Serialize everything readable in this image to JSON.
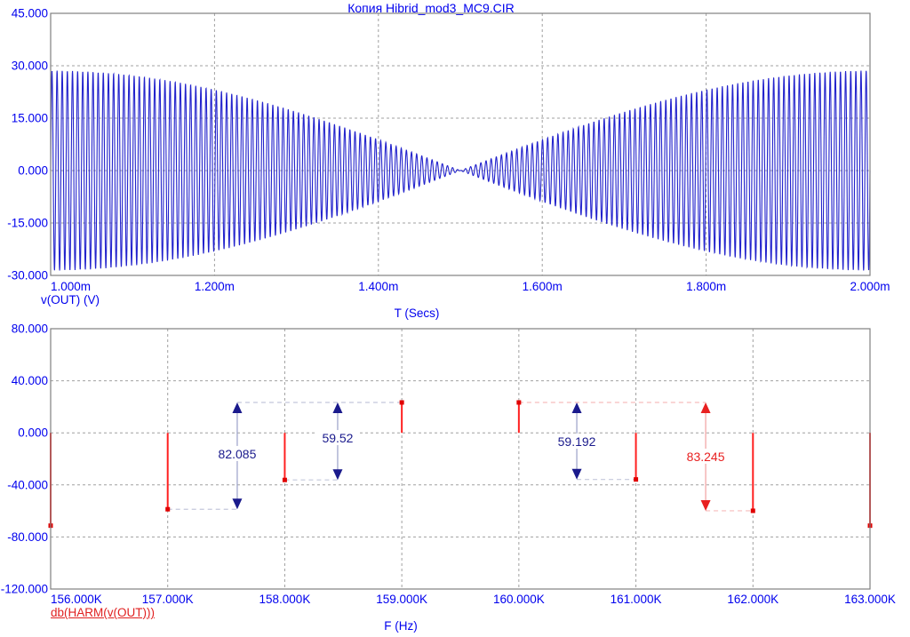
{
  "window": {
    "title": "Копия Hibrid_mod3_MC9.CIR"
  },
  "colors": {
    "label_blue": "#0000ee",
    "waveform_blue": "#2222cc",
    "stem_red": "#ff2020",
    "marker_red": "#e00000",
    "measure_navy": "#1a1a8c",
    "measure_red": "#e82020",
    "grid_gray": "#a0a0a0",
    "frame_gray": "#808080"
  },
  "chart_data": [
    {
      "type": "line",
      "name": "transient-analysis",
      "title": "Копия Hibrid_mod3_MC9.CIR",
      "trace_label": "v(OUT) (V)",
      "xlabel": "T (Secs)",
      "x_ticks": [
        "1.000m",
        "1.200m",
        "1.400m",
        "1.600m",
        "1.800m",
        "2.000m"
      ],
      "x_range_s": [
        0.001,
        0.002
      ],
      "y_ticks": [
        "45.000",
        "30.000",
        "15.000",
        "0.000",
        "-15.000",
        "-30.000"
      ],
      "y_tick_values": [
        45,
        30,
        15,
        0,
        -15,
        -30
      ],
      "ylim": [
        -30,
        45
      ],
      "grid": true,
      "signal": {
        "description": "beat of two equal tones, envelope node at 1.500m",
        "f1_hz": 159000,
        "f2_hz": 160000,
        "amplitude_each_v": 14.3,
        "envelope_peak_v": 28.6
      }
    },
    {
      "type": "stem-spectrum",
      "name": "fft-spectrum",
      "trace_label": "db(HARM(v(OUT)))",
      "xlabel": "F (Hz)",
      "x_ticks": [
        "156.000K",
        "157.000K",
        "158.000K",
        "159.000K",
        "160.000K",
        "161.000K",
        "162.000K",
        "163.000K"
      ],
      "x_range_hz": [
        156000,
        163000
      ],
      "y_ticks": [
        "80.000",
        "40.000",
        "0.000",
        "-40.000",
        "-80.000",
        "-120.000"
      ],
      "y_tick_values": [
        80,
        40,
        0,
        -40,
        -80,
        -120
      ],
      "ylim": [
        -120,
        80
      ],
      "grid": true,
      "baseline_db": 0,
      "stems": [
        {
          "f_hz": 156000,
          "db": -71.3
        },
        {
          "f_hz": 157000,
          "db": -58.7
        },
        {
          "f_hz": 158000,
          "db": -36.2
        },
        {
          "f_hz": 159000,
          "db": 23.35
        },
        {
          "f_hz": 160000,
          "db": 23.35
        },
        {
          "f_hz": 161000,
          "db": -35.8
        },
        {
          "f_hz": 162000,
          "db": -59.9
        },
        {
          "f_hz": 163000,
          "db": -71.3
        }
      ],
      "measurements": [
        {
          "label": "82.085",
          "color": "#1a1a8c",
          "shaft_color": "#9aa0c8",
          "leader_color": "#c4c8dc",
          "x_hz": 157594,
          "top_db": 23.35,
          "bottom_db": -58.73,
          "label_db": -16.2,
          "top_leader_to_hz": 159000,
          "bottom_leader_to_hz": 157000
        },
        {
          "label": "59.52",
          "color": "#1a1a8c",
          "shaft_color": "#9aa0c8",
          "leader_color": "#c4c8dc",
          "x_hz": 158452,
          "top_db": 23.35,
          "bottom_db": -36.17,
          "label_db": -4.0,
          "top_leader_to_hz": null,
          "bottom_leader_to_hz": 158000
        },
        {
          "label": "59.192",
          "color": "#1a1a8c",
          "shaft_color": "#9aa0c8",
          "leader_color": "#c4c8dc",
          "x_hz": 160495,
          "top_db": 23.35,
          "bottom_db": -35.84,
          "label_db": -6.7,
          "top_leader_to_hz": null,
          "bottom_leader_to_hz": 161000
        },
        {
          "label": "83.245",
          "color": "#e82020",
          "shaft_color": "#f0a0a0",
          "leader_color": "#f6bcbc",
          "x_hz": 161596,
          "top_db": 23.35,
          "bottom_db": -59.9,
          "label_db": -18.3,
          "top_leader_to_hz": 160000,
          "bottom_leader_to_hz": 162000
        }
      ]
    }
  ]
}
